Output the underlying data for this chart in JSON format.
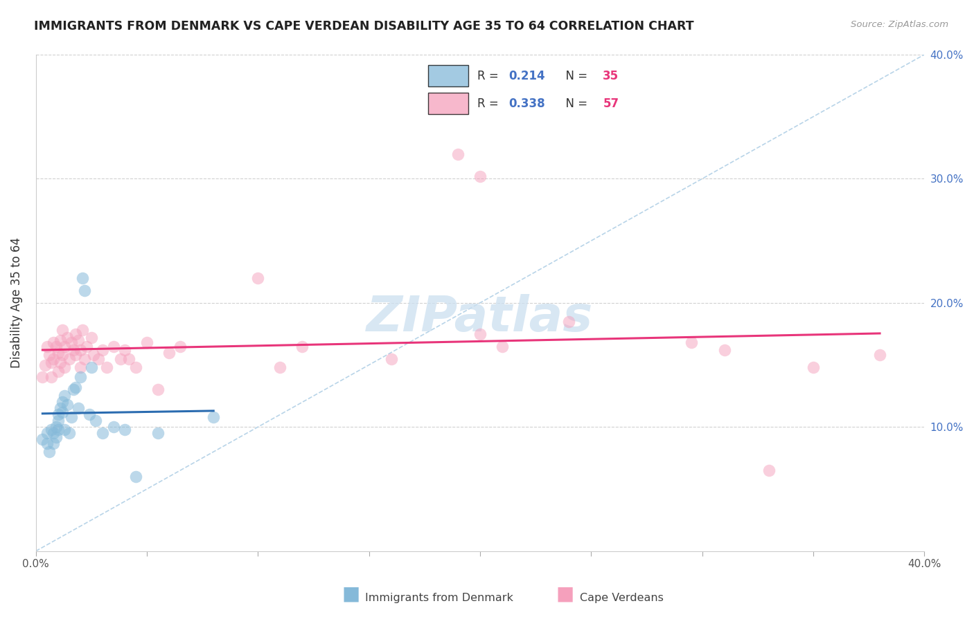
{
  "title": "IMMIGRANTS FROM DENMARK VS CAPE VERDEAN DISABILITY AGE 35 TO 64 CORRELATION CHART",
  "source": "Source: ZipAtlas.com",
  "ylabel": "Disability Age 35 to 64",
  "xlim": [
    0.0,
    0.4
  ],
  "ylim": [
    0.0,
    0.4
  ],
  "denmark_color": "#85b9d9",
  "capeverde_color": "#f5a0bc",
  "denmark_line_color": "#2b6cb0",
  "capeverde_line_color": "#e8357a",
  "diagonal_color": "#b8d4e8",
  "watermark_text": "ZIPatlas",
  "watermark_color": "#cce0f0",
  "legend_dk_label": "R = 0.214   N = 35",
  "legend_cv_label": "R = 0.338   N = 57",
  "legend_r_color": "#4472c4",
  "legend_n_color": "#e8357a",
  "bottom_legend_dk": "Immigrants from Denmark",
  "bottom_legend_cv": "Cape Verdeans",
  "denmark_x": [
    0.003,
    0.005,
    0.005,
    0.006,
    0.007,
    0.008,
    0.008,
    0.009,
    0.009,
    0.01,
    0.01,
    0.01,
    0.011,
    0.012,
    0.012,
    0.013,
    0.013,
    0.014,
    0.015,
    0.016,
    0.017,
    0.018,
    0.019,
    0.02,
    0.021,
    0.022,
    0.024,
    0.025,
    0.027,
    0.03,
    0.035,
    0.04,
    0.045,
    0.055,
    0.08
  ],
  "denmark_y": [
    0.09,
    0.095,
    0.087,
    0.08,
    0.098,
    0.095,
    0.087,
    0.1,
    0.092,
    0.11,
    0.105,
    0.098,
    0.115,
    0.12,
    0.112,
    0.125,
    0.098,
    0.118,
    0.095,
    0.108,
    0.13,
    0.132,
    0.115,
    0.14,
    0.22,
    0.21,
    0.11,
    0.148,
    0.105,
    0.095,
    0.1,
    0.098,
    0.06,
    0.095,
    0.108
  ],
  "capeverde_x": [
    0.003,
    0.004,
    0.005,
    0.006,
    0.007,
    0.007,
    0.008,
    0.008,
    0.009,
    0.01,
    0.01,
    0.011,
    0.011,
    0.012,
    0.012,
    0.013,
    0.013,
    0.014,
    0.015,
    0.016,
    0.017,
    0.018,
    0.018,
    0.019,
    0.02,
    0.02,
    0.021,
    0.022,
    0.023,
    0.025,
    0.026,
    0.028,
    0.03,
    0.032,
    0.035,
    0.038,
    0.04,
    0.042,
    0.045,
    0.05,
    0.055,
    0.06,
    0.065,
    0.1,
    0.11,
    0.12,
    0.16,
    0.2,
    0.21,
    0.24,
    0.295,
    0.31,
    0.35,
    0.38,
    0.19,
    0.2,
    0.33
  ],
  "capeverde_y": [
    0.14,
    0.15,
    0.165,
    0.158,
    0.152,
    0.14,
    0.168,
    0.155,
    0.165,
    0.145,
    0.16,
    0.17,
    0.152,
    0.178,
    0.158,
    0.148,
    0.165,
    0.172,
    0.155,
    0.168,
    0.162,
    0.175,
    0.158,
    0.17,
    0.162,
    0.148,
    0.178,
    0.155,
    0.165,
    0.172,
    0.158,
    0.155,
    0.162,
    0.148,
    0.165,
    0.155,
    0.162,
    0.155,
    0.148,
    0.168,
    0.13,
    0.16,
    0.165,
    0.22,
    0.148,
    0.165,
    0.155,
    0.175,
    0.165,
    0.185,
    0.168,
    0.162,
    0.148,
    0.158,
    0.32,
    0.302,
    0.065
  ]
}
